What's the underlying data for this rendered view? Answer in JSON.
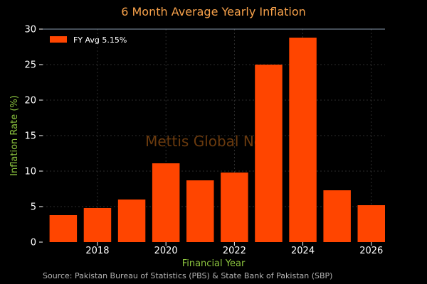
{
  "chart_data": {
    "type": "bar",
    "title": "6 Month Average Yearly Inflation",
    "xlabel": "Financial Year",
    "ylabel": "Inflation Rate (%)",
    "x": [
      2017,
      2018,
      2019,
      2020,
      2021,
      2022,
      2023,
      2024,
      2025,
      2026
    ],
    "values": [
      3.8,
      4.8,
      6.0,
      11.1,
      8.7,
      9.8,
      25.0,
      28.8,
      7.3,
      5.2
    ],
    "xlim": [
      2016.4,
      2026.4
    ],
    "ylim": [
      0,
      30
    ],
    "xticks": [
      "2018",
      "2020",
      "2022",
      "2024",
      "2026"
    ],
    "yticks": [
      "0",
      "5",
      "10",
      "15",
      "20",
      "25",
      "30"
    ],
    "legend": "FY Avg 5.15%",
    "legend_position": "top-left",
    "grid": true,
    "bar_color": "#ff4500",
    "watermark": "Mettis Global News",
    "source": "Source: Pakistan Bureau of Statistics (PBS) & State Bank of Pakistan (SBP)"
  }
}
